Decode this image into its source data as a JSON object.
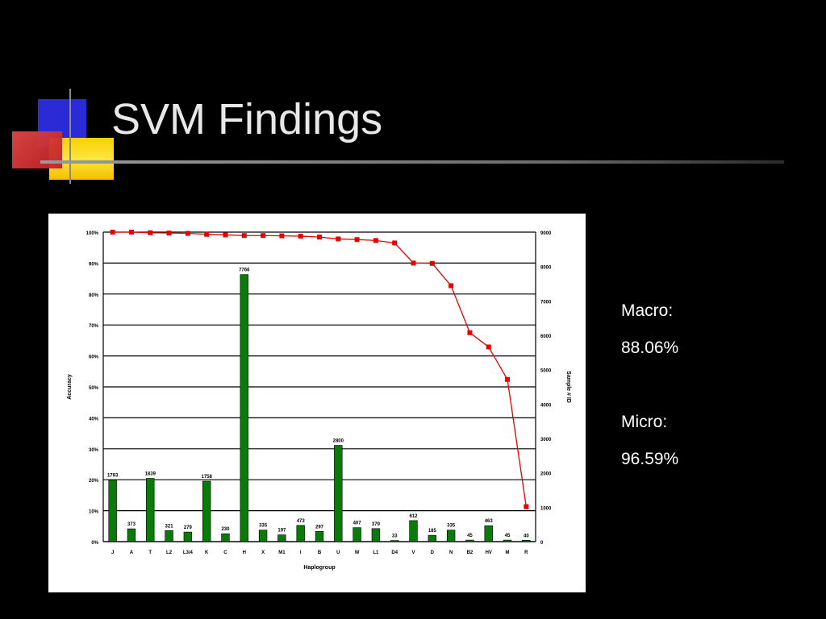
{
  "slide": {
    "title": "SVM Findings",
    "macro_label": "Macro:",
    "macro_value": "88.06%",
    "micro_label": "Micro:",
    "micro_value": "96.59%"
  },
  "colors": {
    "bar": "#0a7a0a",
    "line": "#e60000",
    "background": "#000000",
    "title": "#e8e8e8"
  },
  "chart_data": {
    "type": "bar",
    "xlabel": "Haplogroup",
    "ylabel": "Accuracy",
    "y2label": "Sample # ID",
    "categories": [
      "J",
      "A",
      "T",
      "L2",
      "L3/4",
      "K",
      "C",
      "H",
      "X",
      "M1",
      "I",
      "B",
      "U",
      "W",
      "L1",
      "D4",
      "V",
      "D",
      "N",
      "B2",
      "HV",
      "M",
      "R"
    ],
    "y_ticks": [
      "0%",
      "10%",
      "20%",
      "30%",
      "40%",
      "50%",
      "60%",
      "70%",
      "80%",
      "90%",
      "100%"
    ],
    "y2_ticks": [
      "0",
      "1000",
      "2000",
      "3000",
      "4000",
      "5000",
      "6000",
      "7000",
      "8000",
      "9000"
    ],
    "ylim": [
      0,
      100
    ],
    "y2lim": [
      0,
      9000
    ],
    "grid": true,
    "series": [
      {
        "axis": "right",
        "type": "bar",
        "values": [
          1793,
          373,
          1839,
          321,
          279,
          1758,
          230,
          7766,
          335,
          197,
          473,
          297,
          2800,
          407,
          379,
          33,
          612,
          185,
          335,
          45,
          463,
          45,
          40
        ],
        "labels": [
          "1793",
          "373",
          "1839",
          "321",
          "279",
          "1758",
          "230",
          "7766",
          "335",
          "197",
          "473",
          "297",
          "2800",
          "407",
          "379",
          "33",
          "612",
          "185",
          "335",
          "45",
          "463",
          "45",
          "40"
        ]
      },
      {
        "axis": "left",
        "type": "line",
        "values": [
          100,
          100,
          99.8,
          99.7,
          99.6,
          99.3,
          99.1,
          98.9,
          98.9,
          98.8,
          98.7,
          98.4,
          97.8,
          97.6,
          97.3,
          96.5,
          90,
          89.9,
          82.7,
          67.5,
          62.9,
          52.4,
          11.3
        ]
      }
    ]
  }
}
